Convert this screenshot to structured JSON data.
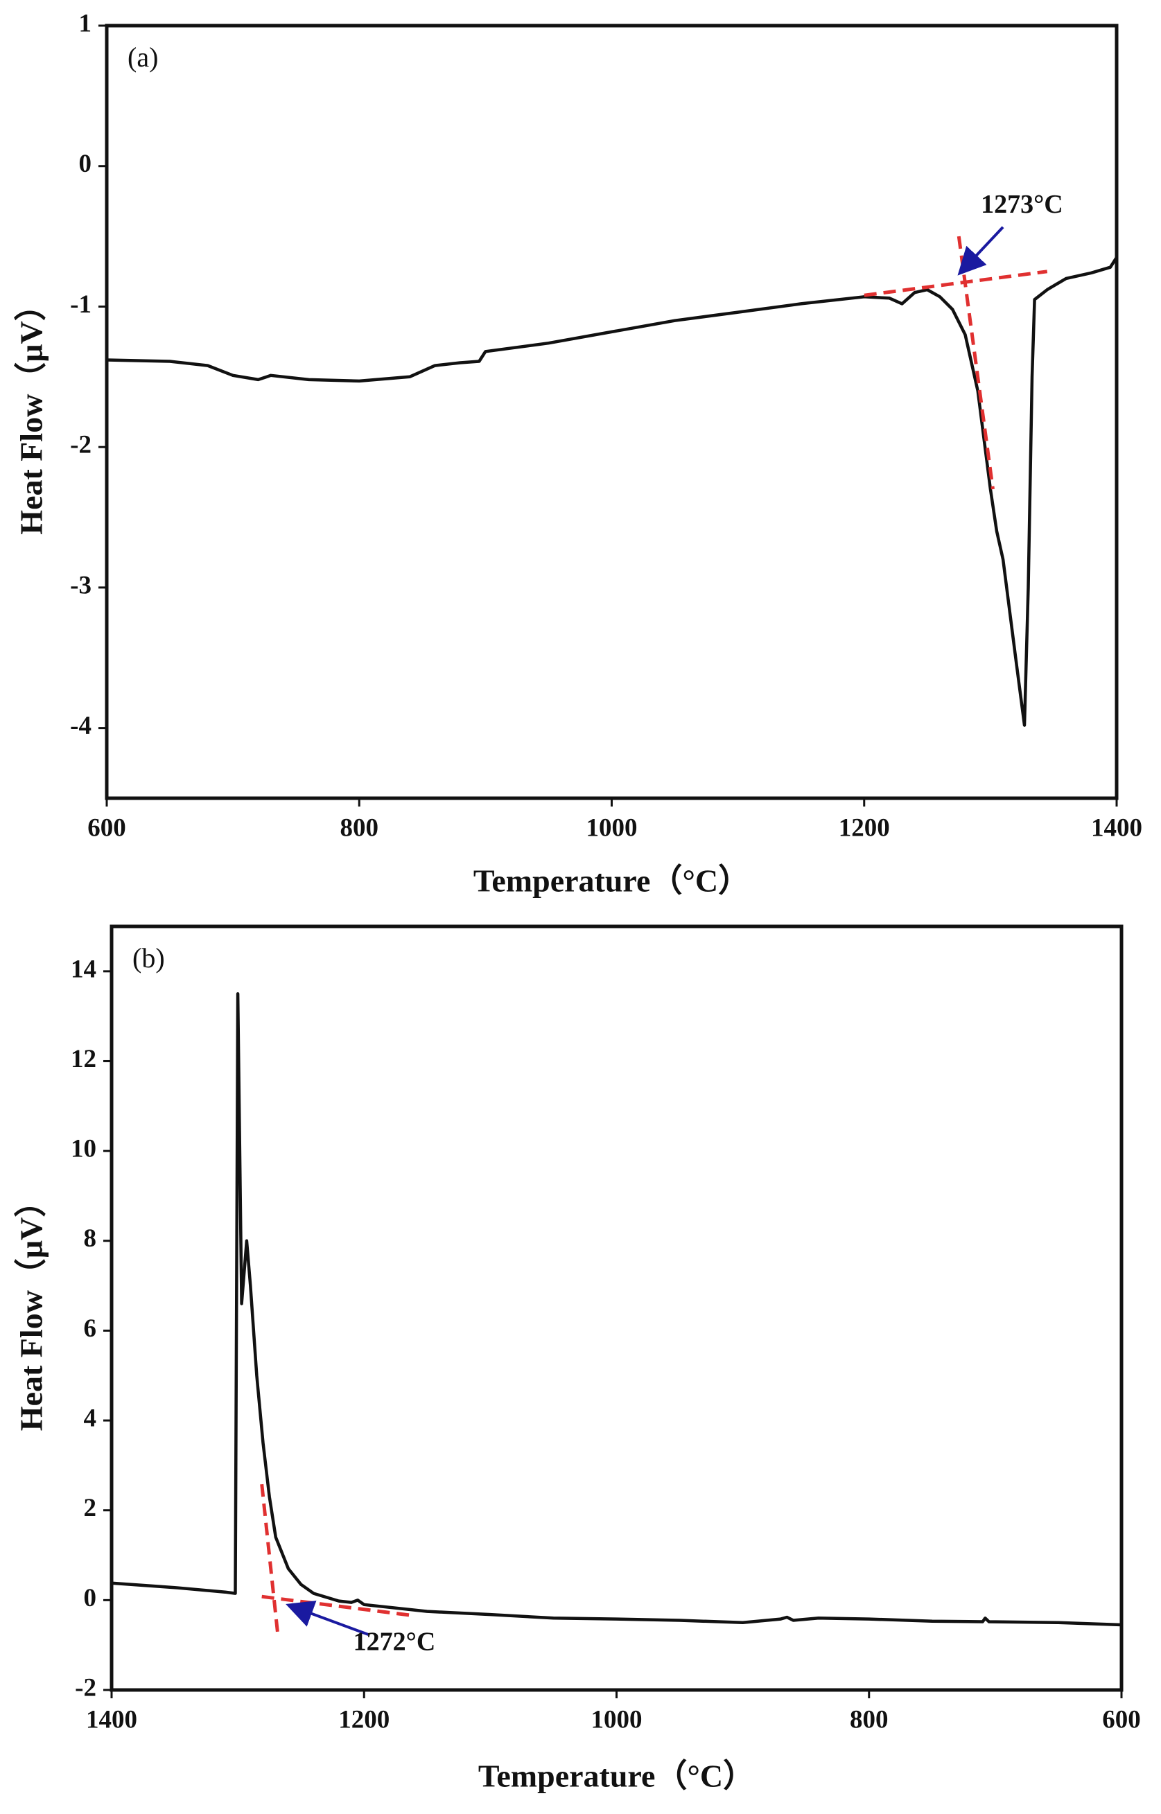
{
  "chart_data": [
    {
      "type": "line",
      "label": "(a)",
      "x_label": "Temperature（°C）",
      "y_label": "Heat Flow（μV）",
      "xlim": [
        600,
        1400
      ],
      "xticks": [
        600,
        800,
        1000,
        1200,
        1400
      ],
      "ylim": [
        -4.5,
        1
      ],
      "yticks": [
        -4,
        -3,
        -2,
        -1,
        0,
        1
      ],
      "series": [
        {
          "color": "#111111",
          "x": [
            600,
            650,
            680,
            700,
            720,
            730,
            760,
            800,
            840,
            860,
            880,
            895,
            900,
            950,
            1000,
            1050,
            1100,
            1150,
            1200,
            1220,
            1230,
            1240,
            1250,
            1260,
            1270,
            1280,
            1290,
            1300,
            1305,
            1310,
            1320,
            1327,
            1330,
            1333,
            1335,
            1345,
            1360,
            1380,
            1395,
            1400
          ],
          "values": [
            -1.38,
            -1.39,
            -1.42,
            -1.49,
            -1.52,
            -1.49,
            -1.52,
            -1.53,
            -1.5,
            -1.42,
            -1.4,
            -1.39,
            -1.32,
            -1.26,
            -1.18,
            -1.1,
            -1.04,
            -0.98,
            -0.93,
            -0.94,
            -0.98,
            -0.9,
            -0.88,
            -0.93,
            -1.02,
            -1.2,
            -1.6,
            -2.3,
            -2.6,
            -2.8,
            -3.5,
            -3.98,
            -3.0,
            -1.5,
            -0.95,
            -0.88,
            -0.8,
            -0.76,
            -0.72,
            -0.65
          ]
        }
      ],
      "tangents": [
        {
          "color": "#e03030",
          "x": [
            1200,
            1345
          ],
          "values": [
            -0.92,
            -0.75
          ]
        },
        {
          "color": "#e03030",
          "x": [
            1275,
            1302
          ],
          "values": [
            -0.5,
            -2.3
          ]
        }
      ],
      "annotations": [
        {
          "text": "1273°C",
          "x": 1325,
          "y": -0.29,
          "arrow_x": 1277,
          "arrow_y": -0.75,
          "arrow_color": "#1a1aa0"
        }
      ]
    },
    {
      "type": "line",
      "label": "(b)",
      "x_label": "Temperature（°C）",
      "y_label": "Heat Flow（μV）",
      "xlim": [
        1400,
        600
      ],
      "xticks": [
        1400,
        1200,
        1000,
        800,
        600
      ],
      "ylim": [
        -2,
        15
      ],
      "yticks": [
        -2,
        0,
        2,
        4,
        6,
        8,
        10,
        12,
        14
      ],
      "series": [
        {
          "color": "#111111",
          "x": [
            1400,
            1350,
            1310,
            1302,
            1300,
            1297,
            1293,
            1290,
            1285,
            1280,
            1275,
            1270,
            1260,
            1250,
            1240,
            1220,
            1210,
            1205,
            1200,
            1150,
            1100,
            1050,
            1000,
            950,
            900,
            870,
            865,
            860,
            840,
            800,
            750,
            710,
            708,
            705,
            650,
            600
          ],
          "values": [
            0.38,
            0.28,
            0.18,
            0.15,
            13.5,
            6.6,
            8.0,
            7.0,
            5.0,
            3.5,
            2.3,
            1.4,
            0.7,
            0.35,
            0.15,
            -0.02,
            -0.05,
            0.0,
            -0.1,
            -0.25,
            -0.32,
            -0.4,
            -0.42,
            -0.45,
            -0.5,
            -0.42,
            -0.38,
            -0.45,
            -0.4,
            -0.42,
            -0.47,
            -0.48,
            -0.4,
            -0.48,
            -0.5,
            -0.55
          ]
        }
      ],
      "tangents": [
        {
          "color": "#e03030",
          "x": [
            1281,
            1162
          ],
          "values": [
            0.08,
            -0.34
          ]
        },
        {
          "color": "#e03030",
          "x": [
            1281,
            1268
          ],
          "values": [
            2.58,
            -0.85
          ]
        }
      ],
      "annotations": [
        {
          "text": "1272°C",
          "x": 1176,
          "y": -0.98,
          "arrow_x": 1258,
          "arrow_y": -0.13,
          "arrow_color": "#1a1aa0"
        }
      ]
    }
  ]
}
